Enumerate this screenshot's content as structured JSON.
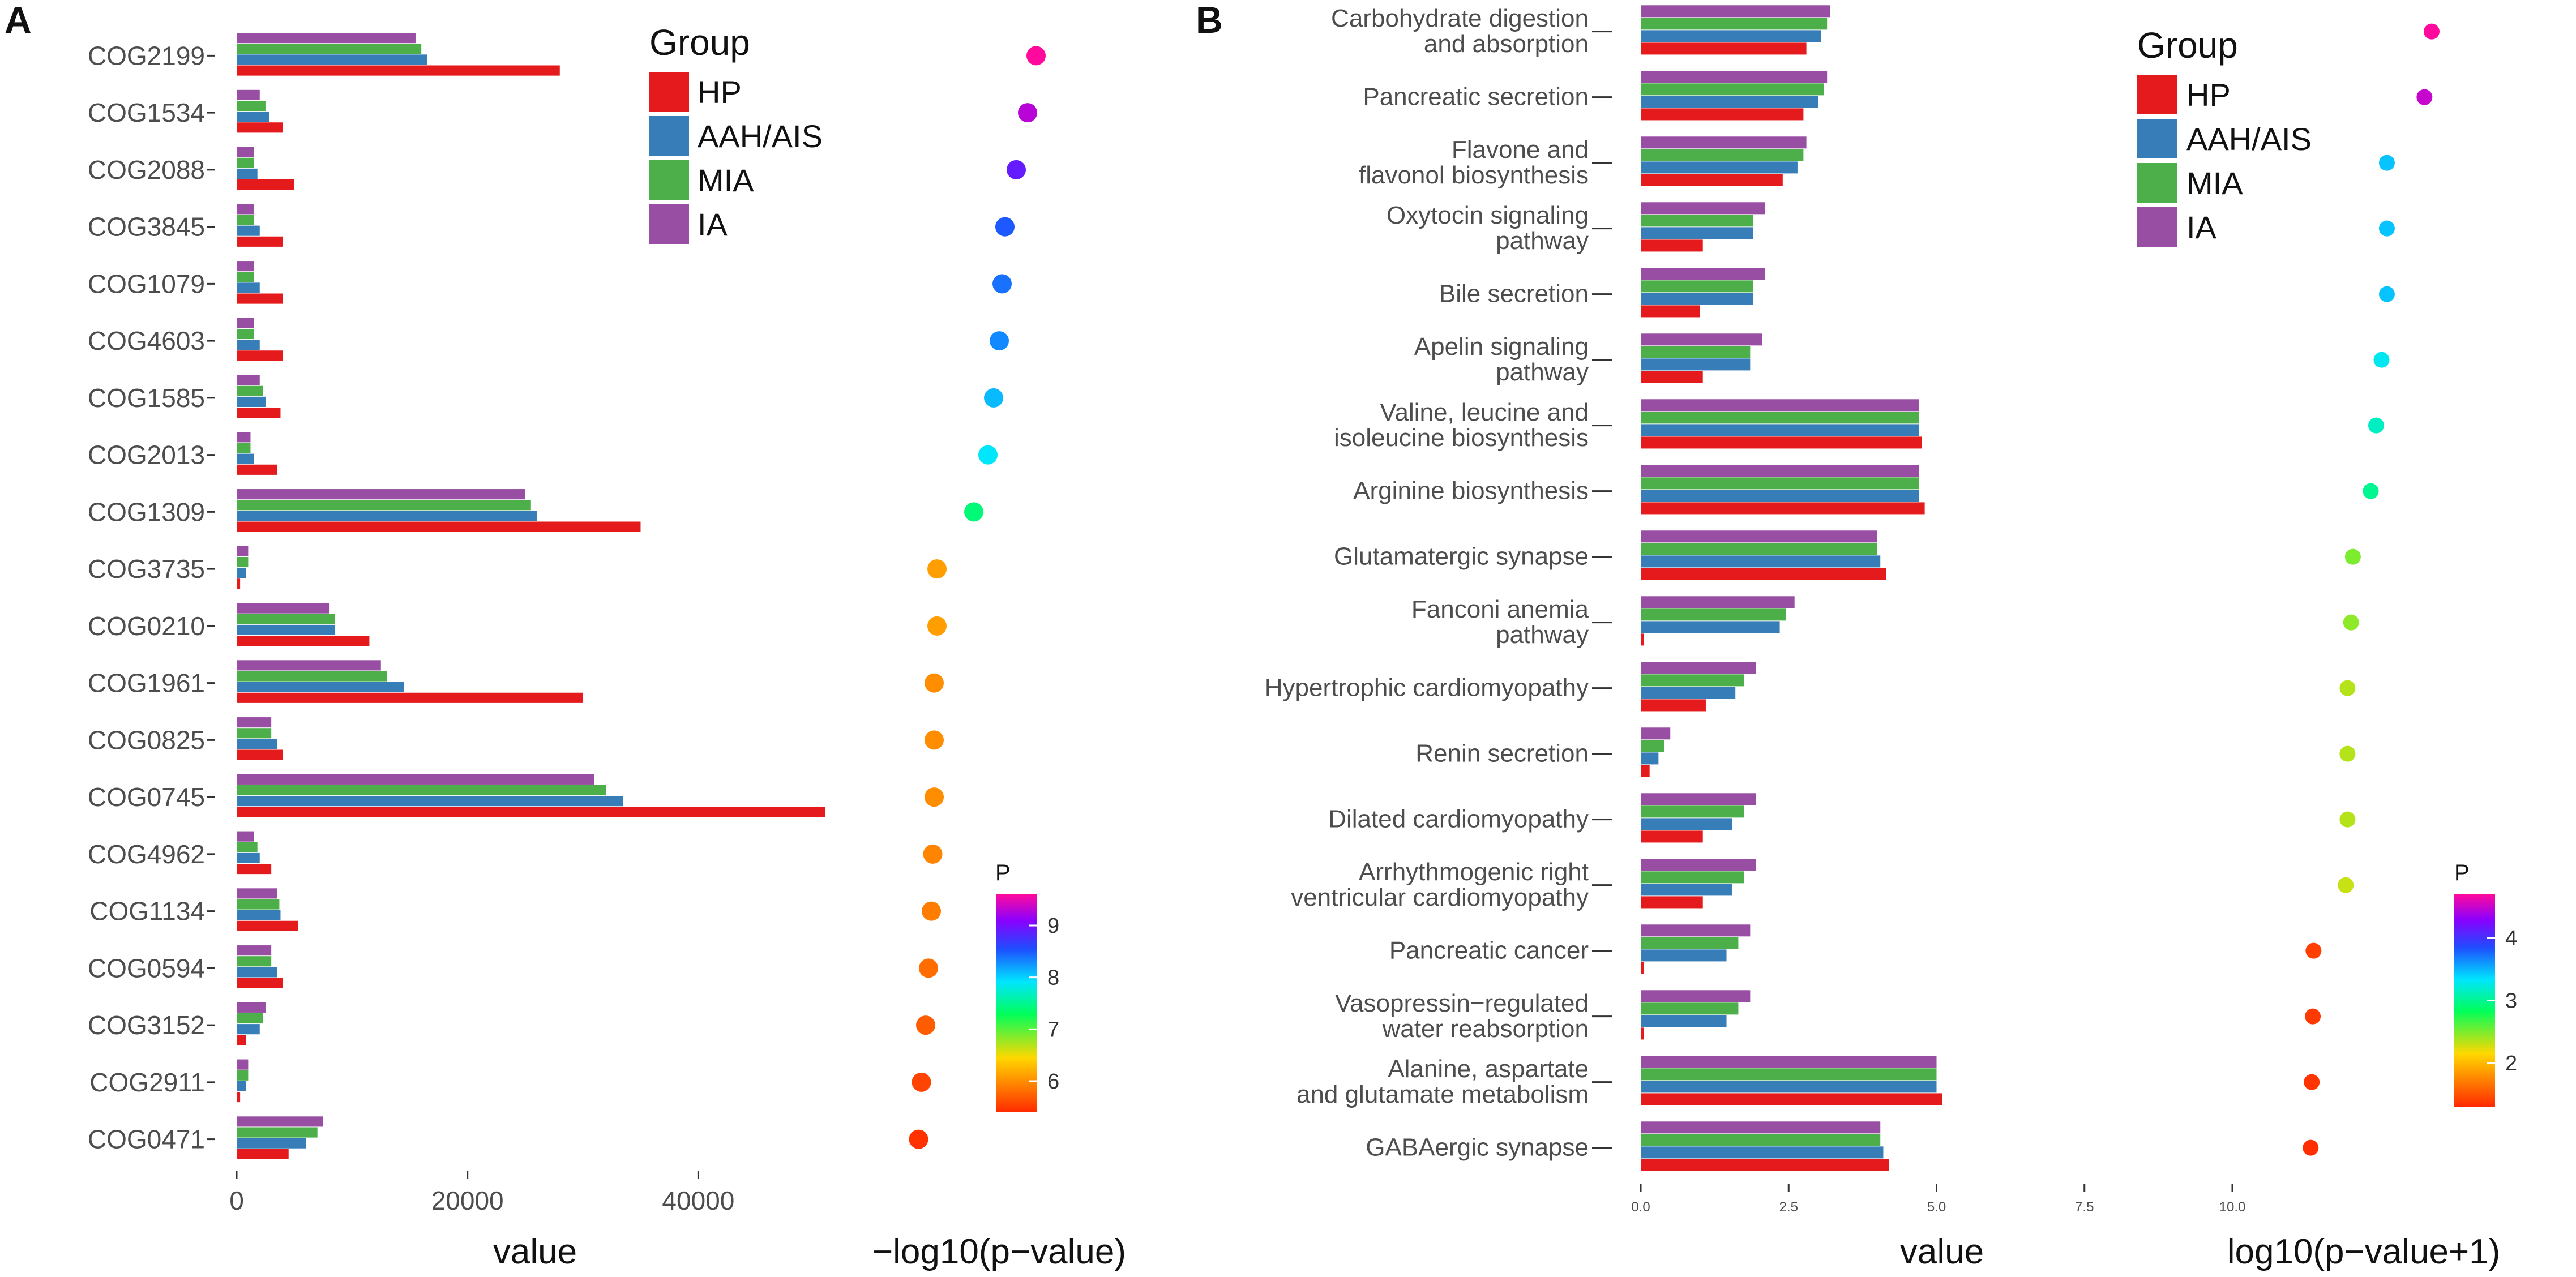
{
  "figure": {
    "panels": [
      {
        "letter": "A"
      },
      {
        "letter": "B"
      }
    ]
  },
  "chart_data": [
    {
      "type": "bar",
      "orientation": "horizontal",
      "panel": "A",
      "categories": [
        "COG2199",
        "COG1534",
        "COG2088",
        "COG3845",
        "COG1079",
        "COG4603",
        "COG1585",
        "COG2013",
        "COG1309",
        "COG3735",
        "COG0210",
        "COG1961",
        "COG0825",
        "COG0745",
        "COG4962",
        "COG1134",
        "COG0594",
        "COG3152",
        "COG2911",
        "COG0471"
      ],
      "series": [
        {
          "name": "IA",
          "color": "#984ea3",
          "values": [
            15500,
            2000,
            1500,
            1500,
            1500,
            1500,
            2000,
            1200,
            25000,
            1000,
            8000,
            12500,
            3000,
            31000,
            1500,
            3500,
            3000,
            2500,
            1000,
            7500
          ]
        },
        {
          "name": "MIA",
          "color": "#4daf4a",
          "values": [
            16000,
            2500,
            1500,
            1500,
            1500,
            1500,
            2300,
            1200,
            25500,
            1000,
            8500,
            13000,
            3000,
            32000,
            1800,
            3700,
            3000,
            2300,
            1000,
            7000
          ]
        },
        {
          "name": "AAH/AIS",
          "color": "#377eb8",
          "values": [
            16500,
            2800,
            1800,
            2000,
            2000,
            2000,
            2500,
            1500,
            26000,
            800,
            8500,
            14500,
            3500,
            33500,
            2000,
            3800,
            3500,
            2000,
            800,
            6000
          ]
        },
        {
          "name": "HP",
          "color": "#e41a1c",
          "values": [
            28000,
            4000,
            5000,
            4000,
            4000,
            4000,
            3800,
            3500,
            35000,
            300,
            11500,
            30000,
            4000,
            51000,
            3000,
            5300,
            4000,
            800,
            300,
            4500
          ]
        }
      ],
      "xlim": [
        0,
        52000
      ],
      "xticks": [
        "0",
        "20000",
        "40000"
      ],
      "xlabel": "value",
      "dot_plot": {
        "xlabel": "−log10(p−value)",
        "values": [
          9.6,
          9.3,
          8.9,
          8.5,
          8.4,
          8.3,
          8.1,
          7.9,
          7.4,
          6.1,
          6.1,
          6.0,
          6.0,
          6.0,
          5.95,
          5.9,
          5.8,
          5.7,
          5.55,
          5.45
        ]
      },
      "colorbar": {
        "title": "P",
        "min": 5.4,
        "max": 9.6,
        "ticks": [
          "6",
          "7",
          "8",
          "9"
        ]
      },
      "legend": {
        "title": "Group",
        "entries": [
          {
            "label": "HP",
            "color": "#e41a1c"
          },
          {
            "label": "AAH/AIS",
            "color": "#377eb8"
          },
          {
            "label": "MIA",
            "color": "#4daf4a"
          },
          {
            "label": "IA",
            "color": "#984ea3"
          }
        ]
      }
    },
    {
      "type": "bar",
      "orientation": "horizontal",
      "panel": "B",
      "categories": [
        [
          "Carbohydrate digestion",
          "and absorption"
        ],
        [
          "Pancreatic secretion"
        ],
        [
          "Flavone and",
          "flavonol biosynthesis"
        ],
        [
          "Oxytocin signaling",
          "pathway"
        ],
        [
          "Bile secretion"
        ],
        [
          "Apelin signaling",
          "pathway"
        ],
        [
          "Valine, leucine and",
          "isoleucine biosynthesis"
        ],
        [
          "Arginine biosynthesis"
        ],
        [
          "Glutamatergic synapse"
        ],
        [
          "Fanconi anemia",
          "pathway"
        ],
        [
          "Hypertrophic cardiomyopathy"
        ],
        [
          "Renin secretion"
        ],
        [
          "Dilated cardiomyopathy"
        ],
        [
          "Arrhythmogenic right",
          "ventricular cardiomyopathy"
        ],
        [
          "Pancreatic cancer"
        ],
        [
          "Vasopressin−regulated",
          "water reabsorption"
        ],
        [
          "Alanine, aspartate",
          "and glutamate metabolism"
        ],
        [
          "GABAergic synapse"
        ]
      ],
      "series": [
        {
          "name": "IA",
          "color": "#984ea3",
          "values": [
            3.2,
            3.15,
            2.8,
            2.1,
            2.1,
            2.05,
            4.7,
            4.7,
            4.0,
            2.6,
            1.95,
            0.5,
            1.95,
            1.95,
            1.85,
            1.85,
            5.0,
            4.05
          ]
        },
        {
          "name": "MIA",
          "color": "#4daf4a",
          "values": [
            3.15,
            3.1,
            2.75,
            1.9,
            1.9,
            1.85,
            4.7,
            4.7,
            4.0,
            2.45,
            1.75,
            0.4,
            1.75,
            1.75,
            1.65,
            1.65,
            5.0,
            4.05
          ]
        },
        {
          "name": "AAH/AIS",
          "color": "#377eb8",
          "values": [
            3.05,
            3.0,
            2.65,
            1.9,
            1.9,
            1.85,
            4.7,
            4.7,
            4.05,
            2.35,
            1.6,
            0.3,
            1.55,
            1.55,
            1.45,
            1.45,
            5.0,
            4.1
          ]
        },
        {
          "name": "HP",
          "color": "#e41a1c",
          "values": [
            2.8,
            2.75,
            2.4,
            1.05,
            1.0,
            1.05,
            4.75,
            4.8,
            4.15,
            0.05,
            1.1,
            0.15,
            1.05,
            1.05,
            0.05,
            0.05,
            5.1,
            4.2
          ]
        }
      ],
      "xlim": [
        0,
        10
      ],
      "xticks": [
        "0.0",
        "2.5",
        "5.0",
        "7.5",
        "10.0"
      ],
      "xlabel": "value",
      "dot_plot": {
        "xlabel": "log10(p−value+1)",
        "values": [
          4.7,
          4.5,
          3.45,
          3.45,
          3.45,
          3.3,
          3.15,
          3.0,
          2.5,
          2.45,
          2.35,
          2.35,
          2.35,
          2.3,
          1.4,
          1.38,
          1.35,
          1.32
        ]
      },
      "colorbar": {
        "title": "P",
        "min": 1.3,
        "max": 4.7,
        "ticks": [
          "2",
          "3",
          "4"
        ]
      },
      "legend": {
        "title": "Group",
        "entries": [
          {
            "label": "HP",
            "color": "#e41a1c"
          },
          {
            "label": "AAH/AIS",
            "color": "#377eb8"
          },
          {
            "label": "MIA",
            "color": "#4daf4a"
          },
          {
            "label": "IA",
            "color": "#984ea3"
          }
        ]
      }
    }
  ]
}
